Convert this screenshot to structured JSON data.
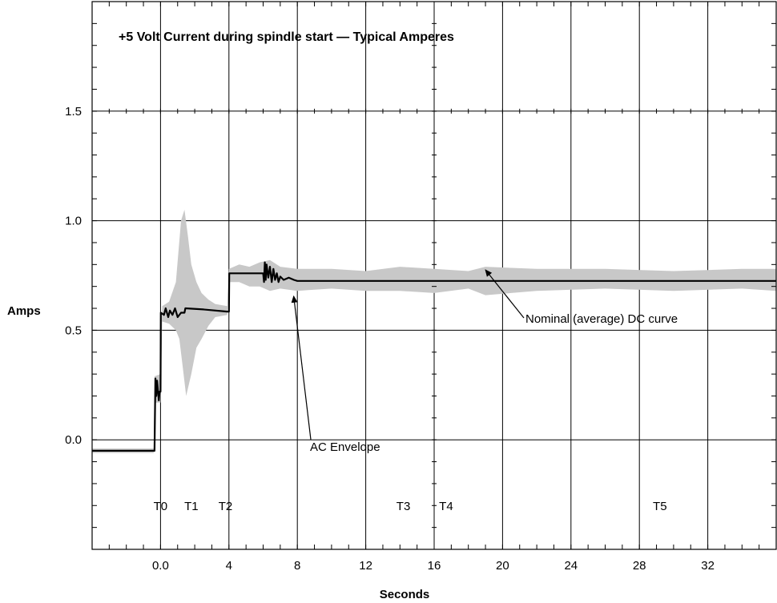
{
  "chart_data": {
    "type": "line",
    "title": "+5 Volt Current during spindle start — Typical Amperes",
    "xlabel": "Seconds",
    "ylabel": "Amps",
    "x_ticks": [
      "0.0",
      "4",
      "8",
      "12",
      "16",
      "20",
      "24",
      "28",
      "32"
    ],
    "x_tick_values": [
      0,
      4,
      8,
      12,
      16,
      20,
      24,
      28,
      32
    ],
    "y_ticks": [
      "0.0",
      "0.5",
      "1.0",
      "1.5"
    ],
    "y_tick_values": [
      0,
      0.5,
      1.0,
      1.5
    ],
    "xlim": [
      -4,
      36
    ],
    "ylim": [
      -0.5,
      2.0
    ],
    "grid": true,
    "time_markers": [
      {
        "label": "T0",
        "x": 0
      },
      {
        "label": "T1",
        "x": 1.8
      },
      {
        "label": "T2",
        "x": 3.8
      },
      {
        "label": "T3",
        "x": 14.2
      },
      {
        "label": "T4",
        "x": 16.7
      },
      {
        "label": "T5",
        "x": 29.2
      }
    ],
    "annotations": [
      {
        "text": "Nominal (average) DC curve",
        "points_to": [
          19,
          0.79
        ]
      },
      {
        "text": "AC Envelope",
        "points_to": [
          7.6,
          0.67
        ]
      }
    ],
    "series": [
      {
        "name": "Nominal (average) DC curve",
        "color": "#000000",
        "points": [
          [
            -4,
            -0.05
          ],
          [
            -0.35,
            -0.05
          ],
          [
            -0.3,
            0.28
          ],
          [
            -0.25,
            0.2
          ],
          [
            -0.2,
            0.27
          ],
          [
            -0.1,
            0.18
          ],
          [
            -0.05,
            0.22
          ],
          [
            0,
            0.22
          ],
          [
            0.02,
            0.58
          ],
          [
            0.2,
            0.57
          ],
          [
            0.3,
            0.6
          ],
          [
            0.45,
            0.56
          ],
          [
            0.55,
            0.59
          ],
          [
            0.7,
            0.57
          ],
          [
            0.85,
            0.6
          ],
          [
            1.0,
            0.56
          ],
          [
            1.2,
            0.58
          ],
          [
            1.4,
            0.58
          ],
          [
            1.45,
            0.6
          ],
          [
            2.5,
            0.595
          ],
          [
            3.9,
            0.585
          ],
          [
            4.0,
            0.585
          ],
          [
            4.02,
            0.76
          ],
          [
            6.0,
            0.76
          ],
          [
            6.05,
            0.72
          ],
          [
            6.1,
            0.81
          ],
          [
            6.15,
            0.73
          ],
          [
            6.2,
            0.8
          ],
          [
            6.3,
            0.74
          ],
          [
            6.4,
            0.79
          ],
          [
            6.5,
            0.72
          ],
          [
            6.6,
            0.78
          ],
          [
            6.7,
            0.73
          ],
          [
            6.8,
            0.76
          ],
          [
            6.9,
            0.72
          ],
          [
            7.0,
            0.745
          ],
          [
            7.2,
            0.73
          ],
          [
            7.5,
            0.74
          ],
          [
            7.8,
            0.73
          ],
          [
            8,
            0.725
          ],
          [
            36,
            0.725
          ]
        ]
      },
      {
        "name": "AC Envelope",
        "color": "#cccccc",
        "upper": [
          [
            -4,
            -0.04
          ],
          [
            -0.4,
            -0.04
          ],
          [
            -0.35,
            0.29
          ],
          [
            0,
            0.3
          ],
          [
            0.1,
            0.61
          ],
          [
            0.5,
            0.63
          ],
          [
            0.9,
            0.72
          ],
          [
            1.2,
            1.0
          ],
          [
            1.4,
            1.05
          ],
          [
            1.6,
            0.93
          ],
          [
            1.8,
            0.8
          ],
          [
            2.1,
            0.72
          ],
          [
            2.4,
            0.67
          ],
          [
            2.8,
            0.64
          ],
          [
            3.2,
            0.62
          ],
          [
            3.9,
            0.61
          ],
          [
            4.0,
            0.78
          ],
          [
            4.6,
            0.8
          ],
          [
            5.2,
            0.79
          ],
          [
            5.8,
            0.81
          ],
          [
            6.4,
            0.82
          ],
          [
            7.0,
            0.79
          ],
          [
            8,
            0.78
          ],
          [
            10,
            0.78
          ],
          [
            12,
            0.77
          ],
          [
            14,
            0.79
          ],
          [
            16,
            0.78
          ],
          [
            18,
            0.77
          ],
          [
            19,
            0.79
          ],
          [
            22,
            0.78
          ],
          [
            26,
            0.78
          ],
          [
            30,
            0.77
          ],
          [
            34,
            0.78
          ],
          [
            36,
            0.78
          ]
        ],
        "lower": [
          [
            36,
            0.68
          ],
          [
            34,
            0.69
          ],
          [
            30,
            0.68
          ],
          [
            26,
            0.69
          ],
          [
            22,
            0.68
          ],
          [
            19,
            0.66
          ],
          [
            18,
            0.69
          ],
          [
            16,
            0.67
          ],
          [
            14,
            0.68
          ],
          [
            12,
            0.68
          ],
          [
            10,
            0.69
          ],
          [
            8,
            0.68
          ],
          [
            7.0,
            0.69
          ],
          [
            6.4,
            0.68
          ],
          [
            5.8,
            0.7
          ],
          [
            5.2,
            0.7
          ],
          [
            4.6,
            0.72
          ],
          [
            4.0,
            0.72
          ],
          [
            3.9,
            0.57
          ],
          [
            3.2,
            0.56
          ],
          [
            2.8,
            0.52
          ],
          [
            2.4,
            0.46
          ],
          [
            2.1,
            0.42
          ],
          [
            1.8,
            0.3
          ],
          [
            1.5,
            0.2
          ],
          [
            1.3,
            0.33
          ],
          [
            1.1,
            0.46
          ],
          [
            0.9,
            0.5
          ],
          [
            0.5,
            0.53
          ],
          [
            0.1,
            0.54
          ],
          [
            0,
            0.17
          ],
          [
            -0.35,
            0.17
          ],
          [
            -0.4,
            -0.06
          ],
          [
            -4,
            -0.06
          ]
        ]
      }
    ]
  }
}
